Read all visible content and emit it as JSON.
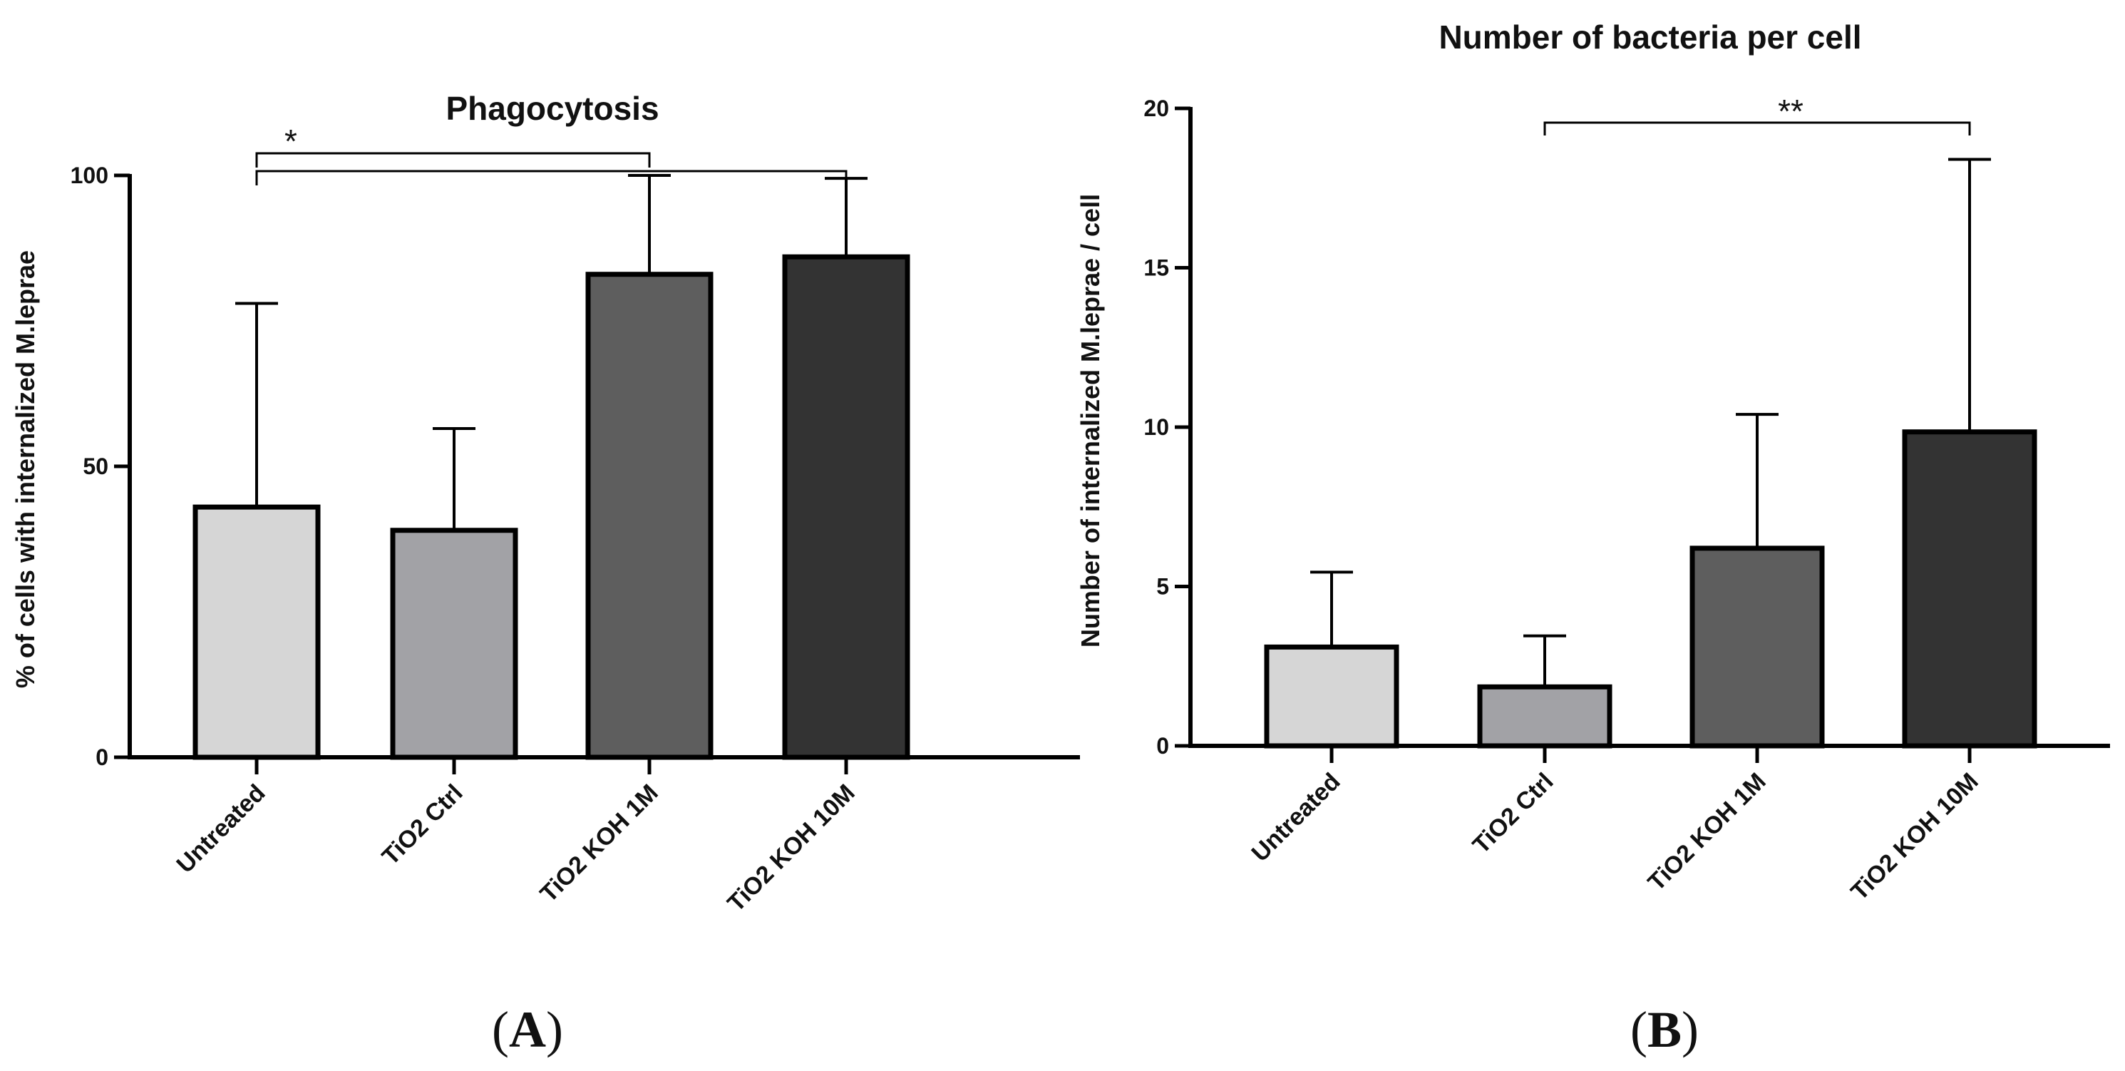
{
  "chart_data": [
    {
      "type": "bar",
      "title": "Phagocytosis",
      "xlabel": "",
      "ylabel": "% of cells with internalized M.leprae",
      "ylim": [
        0,
        100
      ],
      "yticks": [
        0,
        50,
        100
      ],
      "categories": [
        "Untreated",
        "TiO2 Ctrl",
        "TiO2 KOH  1M",
        "TiO2 KOH  10M"
      ],
      "values": [
        43,
        39,
        83,
        86
      ],
      "error_upper": [
        78,
        56.5,
        100,
        99.5
      ],
      "colors": [
        "#d6d6d6",
        "#a2a2a6",
        "#5e5e5e",
        "#333333"
      ],
      "significance": [
        {
          "from": 0,
          "to": 2,
          "label": "*"
        },
        {
          "from": 0,
          "to": 3,
          "label": ""
        }
      ],
      "panel": {
        "open": "(",
        "letter": "A",
        "close": ")"
      }
    },
    {
      "type": "bar",
      "title": "Number of bacteria per cell",
      "xlabel": "",
      "ylabel": "Number of internalized M.leprae / cell",
      "ylim": [
        0,
        20
      ],
      "yticks": [
        0,
        5,
        10,
        15,
        20
      ],
      "categories": [
        "Untreated",
        "TiO2 Ctrl",
        "TiO2 KOH  1M",
        "TiO2 KOH  10M"
      ],
      "values": [
        3.1,
        1.85,
        6.2,
        9.85
      ],
      "error_upper": [
        5.45,
        3.45,
        10.4,
        18.4
      ],
      "colors": [
        "#d6d6d6",
        "#a2a2a6",
        "#5e5e5e",
        "#333333"
      ],
      "significance": [
        {
          "from": 1,
          "to": 3,
          "label": "**"
        }
      ],
      "panel": {
        "open": "(",
        "letter": "B",
        "close": ")"
      }
    }
  ]
}
